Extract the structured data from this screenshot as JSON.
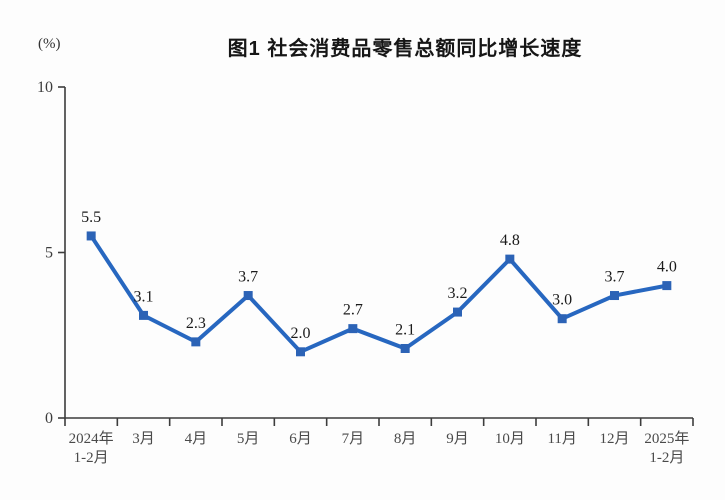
{
  "title": "图1 社会消费品零售总额同比增长速度",
  "unit_label": "(%)",
  "chart_data": {
    "type": "line",
    "title": "图1 社会消费品零售总额同比增长速度",
    "xlabel": "",
    "ylabel": "(%)",
    "categories": [
      "2024年\n1-2月",
      "3月",
      "4月",
      "5月",
      "6月",
      "7月",
      "8月",
      "9月",
      "10月",
      "11月",
      "12月",
      "2025年\n1-2月"
    ],
    "values": [
      5.5,
      3.1,
      2.3,
      3.7,
      2.0,
      2.7,
      2.1,
      3.2,
      4.8,
      3.0,
      3.7,
      4.0
    ],
    "data_labels": [
      "5.5",
      "3.1",
      "2.3",
      "3.7",
      "2.0",
      "2.7",
      "2.1",
      "3.2",
      "4.8",
      "3.0",
      "3.7",
      "4.0"
    ],
    "ylim": [
      0,
      10
    ],
    "yticks": [
      0,
      5,
      10
    ],
    "grid": false,
    "legend_position": "none",
    "marker": "square",
    "line_color": "#2767c0",
    "marker_color": "#2c63b6",
    "axis_color": "#3d3d3d"
  }
}
